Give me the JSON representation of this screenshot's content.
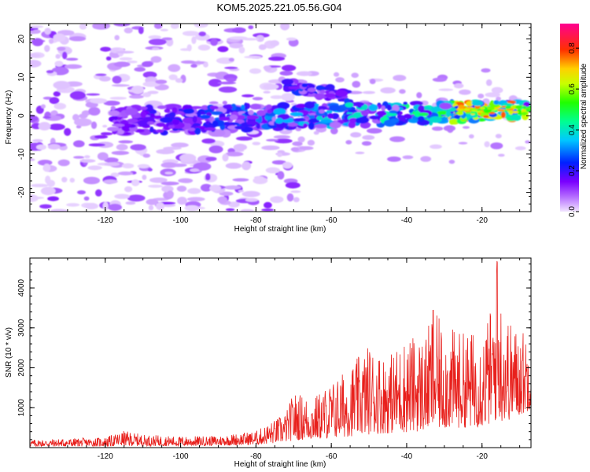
{
  "title": "KOM5.2025.221.05.56.G04",
  "chart_data": [
    {
      "type": "heatmap",
      "title": "",
      "xlabel": "Height of straight line (km)",
      "ylabel": "Frequency (Hz)",
      "xlim": [
        -140,
        -7
      ],
      "ylim": [
        -25,
        24
      ],
      "xticks": [
        -120,
        -100,
        -80,
        -60,
        -40,
        -20
      ],
      "yticks": [
        -20,
        -10,
        0,
        10,
        20
      ],
      "colorbar": {
        "label": "Normalized spectral amplitude",
        "range": [
          0.0,
          0.92
        ],
        "ticks": [
          0.0,
          0.2,
          0.4,
          0.6,
          0.8
        ],
        "colormap": "rainbow (purple-blue-cyan-green-yellow-red-magenta)"
      },
      "features": [
        {
          "name": "main ridge",
          "x_start": -118,
          "x_end": -7,
          "freq_start": -1.5,
          "freq_end": 1.5,
          "peak_amplitude": 0.78,
          "peak_x": -19
        },
        {
          "name": "upper branch",
          "x_start": -72,
          "x_end": -55,
          "freq_start": 8,
          "freq_end": 5,
          "peak_amplitude": 0.2
        },
        {
          "name": "diffuse noise",
          "x_start": -140,
          "x_end": -75,
          "freq_start": -25,
          "freq_end": 24,
          "peak_amplitude": 0.1
        }
      ]
    },
    {
      "type": "line",
      "title": "",
      "xlabel": "Height of straight line (km)",
      "ylabel": "SNR (10 * v/v)",
      "xlim": [
        -140,
        -7
      ],
      "ylim": [
        0,
        4750
      ],
      "xticks": [
        -120,
        -100,
        -80,
        -60,
        -40,
        -20
      ],
      "yticks": [
        1000,
        2000,
        3000,
        4000
      ],
      "series": [
        {
          "name": "SNR",
          "color": "#e8201c",
          "x": [
            -140,
            -130,
            -120,
            -115,
            -110,
            -100,
            -90,
            -80,
            -75,
            -72,
            -70,
            -65,
            -60,
            -55,
            -50,
            -45,
            -40,
            -35,
            -33,
            -30,
            -25,
            -20,
            -17,
            -16,
            -15,
            -12,
            -10,
            -8,
            -7
          ],
          "envelope_max": [
            200,
            230,
            260,
            420,
            330,
            280,
            300,
            420,
            700,
            900,
            1400,
            1250,
            1650,
            2050,
            2600,
            2300,
            2800,
            2800,
            3450,
            3050,
            2900,
            2950,
            3650,
            4700,
            3800,
            3050,
            3050,
            2900,
            2700
          ],
          "envelope_min": [
            30,
            30,
            30,
            40,
            40,
            40,
            50,
            70,
            110,
            140,
            180,
            200,
            230,
            280,
            330,
            360,
            380,
            420,
            440,
            470,
            500,
            520,
            600,
            700,
            650,
            700,
            800,
            900,
            1000
          ]
        }
      ]
    }
  ]
}
